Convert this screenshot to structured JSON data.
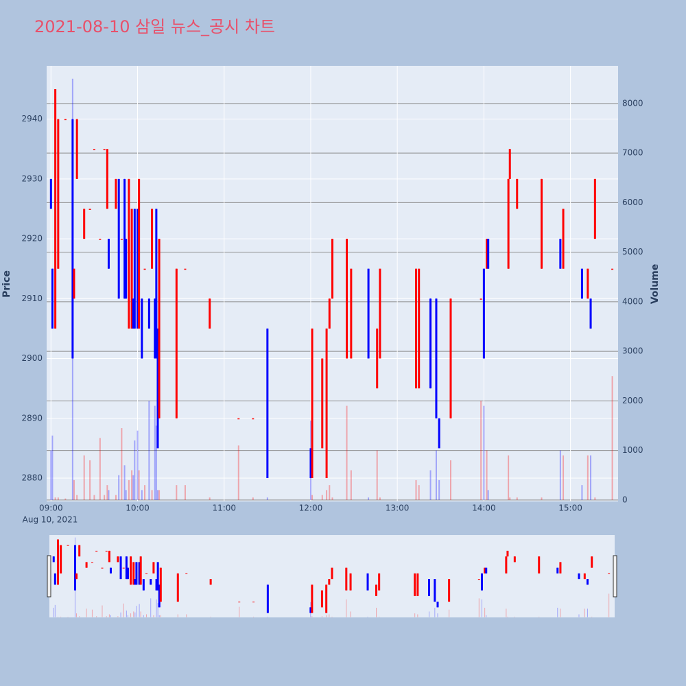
{
  "chart_data": {
    "type": "candlestick",
    "title": "2021-08-10 삼일 뉴스_공시 차트",
    "y_label": "Price",
    "y2_label": "Volume",
    "xlim": [
      "08:57",
      "15:33"
    ],
    "xticks": [
      "09:00",
      "10:00",
      "11:00",
      "12:00",
      "13:00",
      "14:00",
      "15:00"
    ],
    "x_date_label": "Aug 10, 2021",
    "ylim": [
      2876.1,
      2948.9
    ],
    "yticks": [
      2880,
      2890,
      2900,
      2910,
      2920,
      2930,
      2940
    ],
    "y2lim": [
      -30,
      8760
    ],
    "y2ticks": [
      0,
      1000,
      2000,
      3000,
      4000,
      5000,
      6000,
      7000,
      8000
    ],
    "increasing_color": "#ff0000",
    "decreasing_color": "#0000ff",
    "x": [
      "09:00",
      "09:01",
      "09:03",
      "09:05",
      "09:10",
      "09:15",
      "09:16",
      "09:18",
      "09:23",
      "09:27",
      "09:30",
      "09:34",
      "09:37",
      "09:39",
      "09:40",
      "09:45",
      "09:47",
      "09:49",
      "09:51",
      "09:52",
      "09:54",
      "09:56",
      "09:57",
      "09:58",
      "10:00",
      "10:01",
      "10:03",
      "10:05",
      "10:08",
      "10:10",
      "10:12",
      "10:13",
      "10:14",
      "10:15",
      "10:27",
      "10:33",
      "10:50",
      "11:10",
      "11:20",
      "11:30",
      "12:00",
      "12:01",
      "12:08",
      "12:11",
      "12:13",
      "12:15",
      "12:25",
      "12:28",
      "12:40",
      "12:46",
      "12:48",
      "13:13",
      "13:15",
      "13:23",
      "13:27",
      "13:29",
      "13:37",
      "13:58",
      "14:00",
      "14:02",
      "14:03",
      "14:17",
      "14:18",
      "14:23",
      "14:40",
      "14:53",
      "14:55",
      "15:08",
      "15:12",
      "15:14",
      "15:17",
      "15:29"
    ],
    "open": [
      2930,
      2915,
      2905,
      2915,
      2940,
      2940,
      2910,
      2930,
      2920,
      2925,
      2935,
      2920,
      2935,
      2925,
      2920,
      2925,
      2930,
      2920,
      2930,
      2920,
      2905,
      2905,
      2910,
      2925,
      2925,
      2905,
      2910,
      2915,
      2910,
      2915,
      2910,
      2925,
      2905,
      2890,
      2890,
      2915,
      2905,
      2890,
      2890,
      2905,
      2885,
      2880,
      2885,
      2880,
      2905,
      2910,
      2900,
      2900,
      2915,
      2895,
      2900,
      2895,
      2895,
      2910,
      2910,
      2890,
      2890,
      2910,
      2915,
      2915,
      2920,
      2915,
      2930,
      2925,
      2915,
      2920,
      2915,
      2915,
      2910,
      2910,
      2920,
      2915
    ],
    "high": [
      2930,
      2915,
      2945,
      2940,
      2940,
      2940,
      2915,
      2940,
      2925,
      2925,
      2935,
      2920,
      2935,
      2935,
      2920,
      2930,
      2930,
      2920,
      2930,
      2920,
      2930,
      2925,
      2910,
      2925,
      2925,
      2930,
      2910,
      2915,
      2910,
      2925,
      2910,
      2925,
      2905,
      2920,
      2915,
      2915,
      2910,
      2890,
      2890,
      2905,
      2885,
      2905,
      2900,
      2905,
      2910,
      2920,
      2920,
      2915,
      2915,
      2905,
      2915,
      2915,
      2915,
      2910,
      2910,
      2890,
      2910,
      2910,
      2915,
      2920,
      2920,
      2930,
      2935,
      2930,
      2930,
      2920,
      2925,
      2915,
      2915,
      2910,
      2930,
      2915
    ],
    "low": [
      2925,
      2905,
      2905,
      2915,
      2940,
      2900,
      2910,
      2930,
      2920,
      2925,
      2935,
      2920,
      2935,
      2925,
      2915,
      2925,
      2910,
      2920,
      2910,
      2910,
      2905,
      2905,
      2905,
      2905,
      2905,
      2905,
      2900,
      2915,
      2905,
      2915,
      2900,
      2900,
      2885,
      2890,
      2890,
      2915,
      2905,
      2890,
      2890,
      2880,
      2880,
      2880,
      2885,
      2880,
      2905,
      2910,
      2900,
      2900,
      2900,
      2895,
      2900,
      2895,
      2895,
      2895,
      2890,
      2885,
      2890,
      2910,
      2900,
      2915,
      2915,
      2915,
      2930,
      2925,
      2915,
      2915,
      2915,
      2910,
      2910,
      2905,
      2920,
      2915
    ],
    "close": [
      2925,
      2905,
      2945,
      2940,
      2940,
      2900,
      2915,
      2940,
      2925,
      2925,
      2935,
      2920,
      2935,
      2935,
      2915,
      2930,
      2910,
      2920,
      2910,
      2910,
      2930,
      2925,
      2905,
      2905,
      2905,
      2930,
      2900,
      2915,
      2905,
      2925,
      2900,
      2900,
      2885,
      2920,
      2915,
      2915,
      2910,
      2890,
      2890,
      2880,
      2880,
      2905,
      2900,
      2905,
      2910,
      2920,
      2920,
      2915,
      2900,
      2905,
      2915,
      2915,
      2915,
      2895,
      2890,
      2885,
      2910,
      2910,
      2900,
      2920,
      2915,
      2930,
      2935,
      2930,
      2930,
      2915,
      2925,
      2910,
      2915,
      2905,
      2930,
      2915
    ],
    "volume": [
      1000,
      1300,
      50,
      50,
      30,
      8500,
      400,
      100,
      900,
      800,
      100,
      1250,
      100,
      300,
      200,
      100,
      500,
      1450,
      700,
      200,
      400,
      600,
      500,
      1200,
      1400,
      600,
      200,
      300,
      2000,
      200,
      1900,
      1500,
      200,
      200,
      300,
      300,
      50,
      1100,
      50,
      50,
      1600,
      100,
      100,
      200,
      300,
      50,
      1900,
      600,
      50,
      1000,
      50,
      400,
      300,
      600,
      1000,
      400,
      800,
      2000,
      1900,
      1000,
      200,
      900,
      50,
      50,
      50,
      1000,
      900,
      300,
      900,
      900,
      50,
      2500
    ]
  }
}
